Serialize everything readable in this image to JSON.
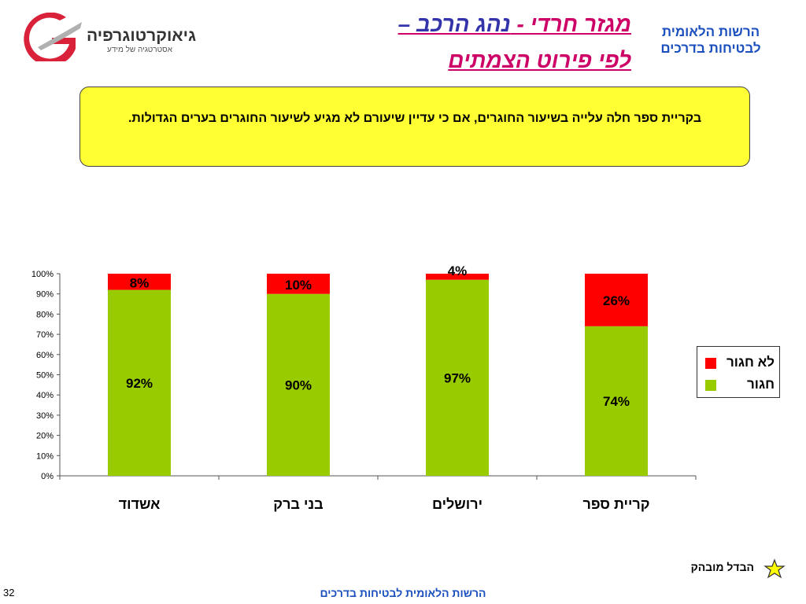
{
  "header": {
    "logo": {
      "brand": "גיאוקרטוגרפיה",
      "tagline": "אסטרטגיה של מידע"
    },
    "title_part1": "מגזר חרדי - ",
    "title_part2": "נהג הרכב – ",
    "title_line2": "לפי פירוט הצמתים ",
    "org_line1": "הרשות הלאומית",
    "org_line2": "לבטיחות בדרכים"
  },
  "note": {
    "text": "בקריית ספר חלה עלייה בשיעור החוגרים, אם כי עדיין שיעורם לא מגיע לשיעור החוגרים בערים הגדולות."
  },
  "chart_data": {
    "type": "bar",
    "stacked": true,
    "categories": [
      "אשדוד",
      "בני ברק",
      "ירושלים",
      "קריית ספר"
    ],
    "series": [
      {
        "name": "חגור",
        "values": [
          92,
          90,
          97,
          74
        ],
        "labels": [
          "92%",
          "90%",
          "97%",
          "74%"
        ],
        "color": "#99cc00"
      },
      {
        "name": "לא חגור",
        "values": [
          8,
          10,
          4,
          26
        ],
        "labels": [
          "8%",
          "10%",
          "4%",
          "26%"
        ],
        "color": "#ff0000"
      }
    ],
    "ylim": [
      0,
      100
    ],
    "yticks": [
      "0%",
      "10%",
      "20%",
      "30%",
      "40%",
      "50%",
      "60%",
      "70%",
      "80%",
      "90%",
      "100%"
    ],
    "grid": false,
    "legend": "right"
  },
  "legend": {
    "items": [
      {
        "label": "לא חגור",
        "color": "#ff0000"
      },
      {
        "label": "חגור",
        "color": "#99cc00"
      }
    ]
  },
  "footer": {
    "notice": "הבדל מובהק",
    "page_number": "32",
    "org": "הרשות הלאומית לבטיחות בדרכים"
  },
  "icons": {
    "notice": "star-icon",
    "logo": "geocartography-logo"
  }
}
